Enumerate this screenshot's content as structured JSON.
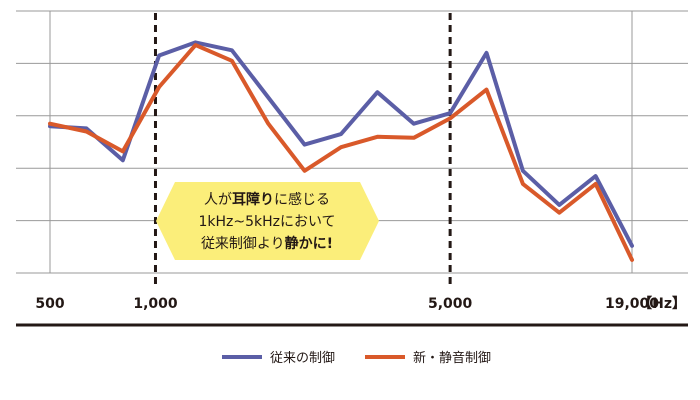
{
  "chart_data": {
    "type": "line",
    "title": "",
    "xlabel": "",
    "ylabel": "",
    "grid": true,
    "x_unit": "【Hz】",
    "x_tick_labels": [
      "500",
      "1,000",
      "5,000",
      "19,000"
    ],
    "highlight_lines": [
      "1,000",
      "5,000"
    ],
    "y_ticks": [
      0,
      1,
      2,
      3,
      4,
      5
    ],
    "ylim": [
      0,
      5
    ],
    "series": [
      {
        "name": "従来の制御",
        "color": "#5b5ea6",
        "values": [
          2.8,
          2.76,
          2.15,
          4.15,
          4.4,
          4.25,
          3.35,
          2.45,
          2.65,
          3.45,
          2.85,
          3.05,
          4.2,
          1.95,
          1.3,
          1.85,
          0.52
        ]
      },
      {
        "name": "新・静音制御",
        "color": "#d9592a",
        "values": [
          2.85,
          2.7,
          2.32,
          3.55,
          4.35,
          4.05,
          2.85,
          1.95,
          2.4,
          2.6,
          2.58,
          2.95,
          3.5,
          1.7,
          1.15,
          1.7,
          0.25
        ]
      }
    ],
    "callout": {
      "line1_a": "人が",
      "line1_b": "耳障り",
      "line1_c": "に感じる",
      "line2": "1kHz~5kHzにおいて",
      "line3_a": "従来制御より",
      "line3_b": "静かに!"
    },
    "colors": {
      "callout_fill": "#fbee7a",
      "grid": "#999999",
      "axis": "#231815"
    }
  }
}
